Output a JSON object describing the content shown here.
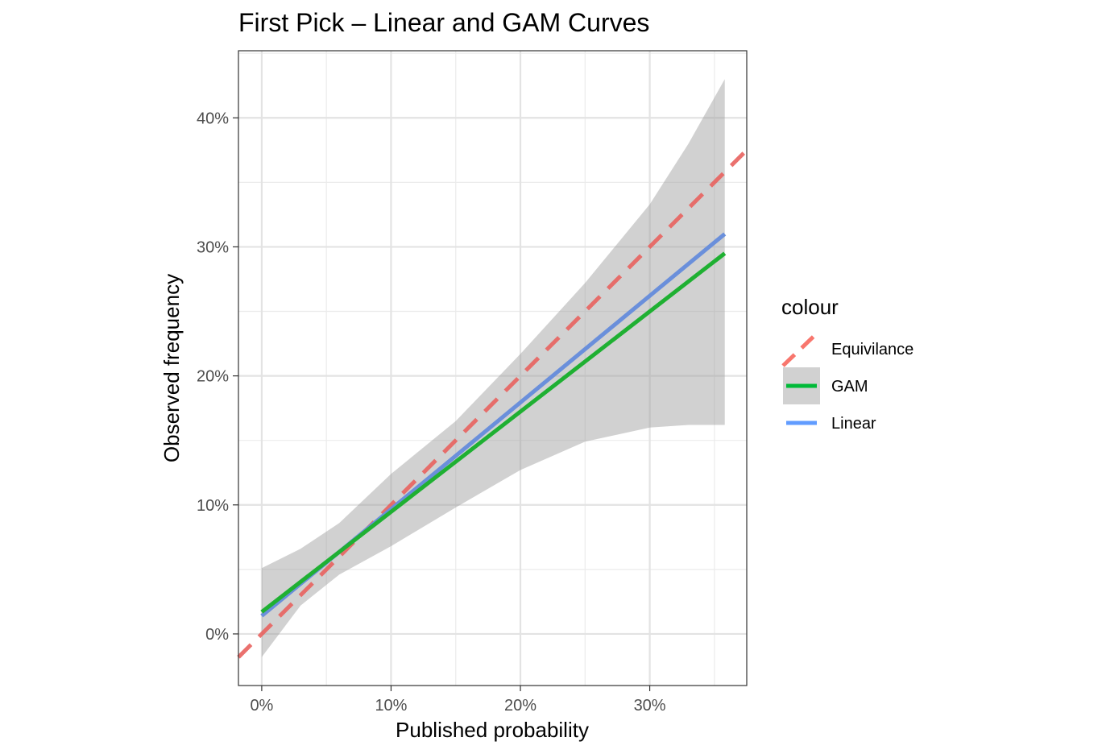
{
  "chart_data": {
    "type": "line",
    "title": "First Pick – Linear and GAM Curves",
    "xlabel": "Published probability",
    "ylabel": "Observed frequency",
    "xlim": [
      -0.018,
      0.375
    ],
    "ylim": [
      -0.04,
      0.452
    ],
    "x_ticks": [
      {
        "value": 0.0,
        "label": "0%"
      },
      {
        "value": 0.1,
        "label": "10%"
      },
      {
        "value": 0.2,
        "label": "20%"
      },
      {
        "value": 0.3,
        "label": "30%"
      }
    ],
    "y_ticks": [
      {
        "value": 0.0,
        "label": "0%"
      },
      {
        "value": 0.1,
        "label": "10%"
      },
      {
        "value": 0.2,
        "label": "20%"
      },
      {
        "value": 0.3,
        "label": "30%"
      },
      {
        "value": 0.4,
        "label": "40%"
      }
    ],
    "grid": true,
    "legend": {
      "title": "colour",
      "position": "right",
      "entries": [
        {
          "name": "Equivilance",
          "color": "#F8766D",
          "style": "dashed"
        },
        {
          "name": "GAM",
          "color": "#00BA38",
          "style": "solid",
          "band": true
        },
        {
          "name": "Linear",
          "color": "#619CFF",
          "style": "solid"
        }
      ]
    },
    "series": [
      {
        "name": "Equivilance",
        "color": "#E8625E",
        "style": "dashed",
        "x": [
          -0.018,
          0.375
        ],
        "y": [
          -0.018,
          0.375
        ]
      },
      {
        "name": "Linear",
        "color": "#6A8FDB",
        "style": "solid",
        "x": [
          0.0,
          0.358
        ],
        "y": [
          0.014,
          0.31
        ]
      },
      {
        "name": "GAM",
        "color": "#1FB032",
        "style": "solid",
        "x": [
          0.0,
          0.358
        ],
        "y": [
          0.017,
          0.295
        ],
        "band_x": [
          0.0,
          0.03,
          0.06,
          0.1,
          0.15,
          0.2,
          0.25,
          0.3,
          0.33,
          0.358
        ],
        "band_lower": [
          -0.018,
          0.022,
          0.046,
          0.068,
          0.098,
          0.127,
          0.149,
          0.16,
          0.162,
          0.162
        ],
        "band_upper": [
          0.051,
          0.066,
          0.086,
          0.124,
          0.165,
          0.217,
          0.272,
          0.333,
          0.38,
          0.43
        ]
      }
    ]
  }
}
